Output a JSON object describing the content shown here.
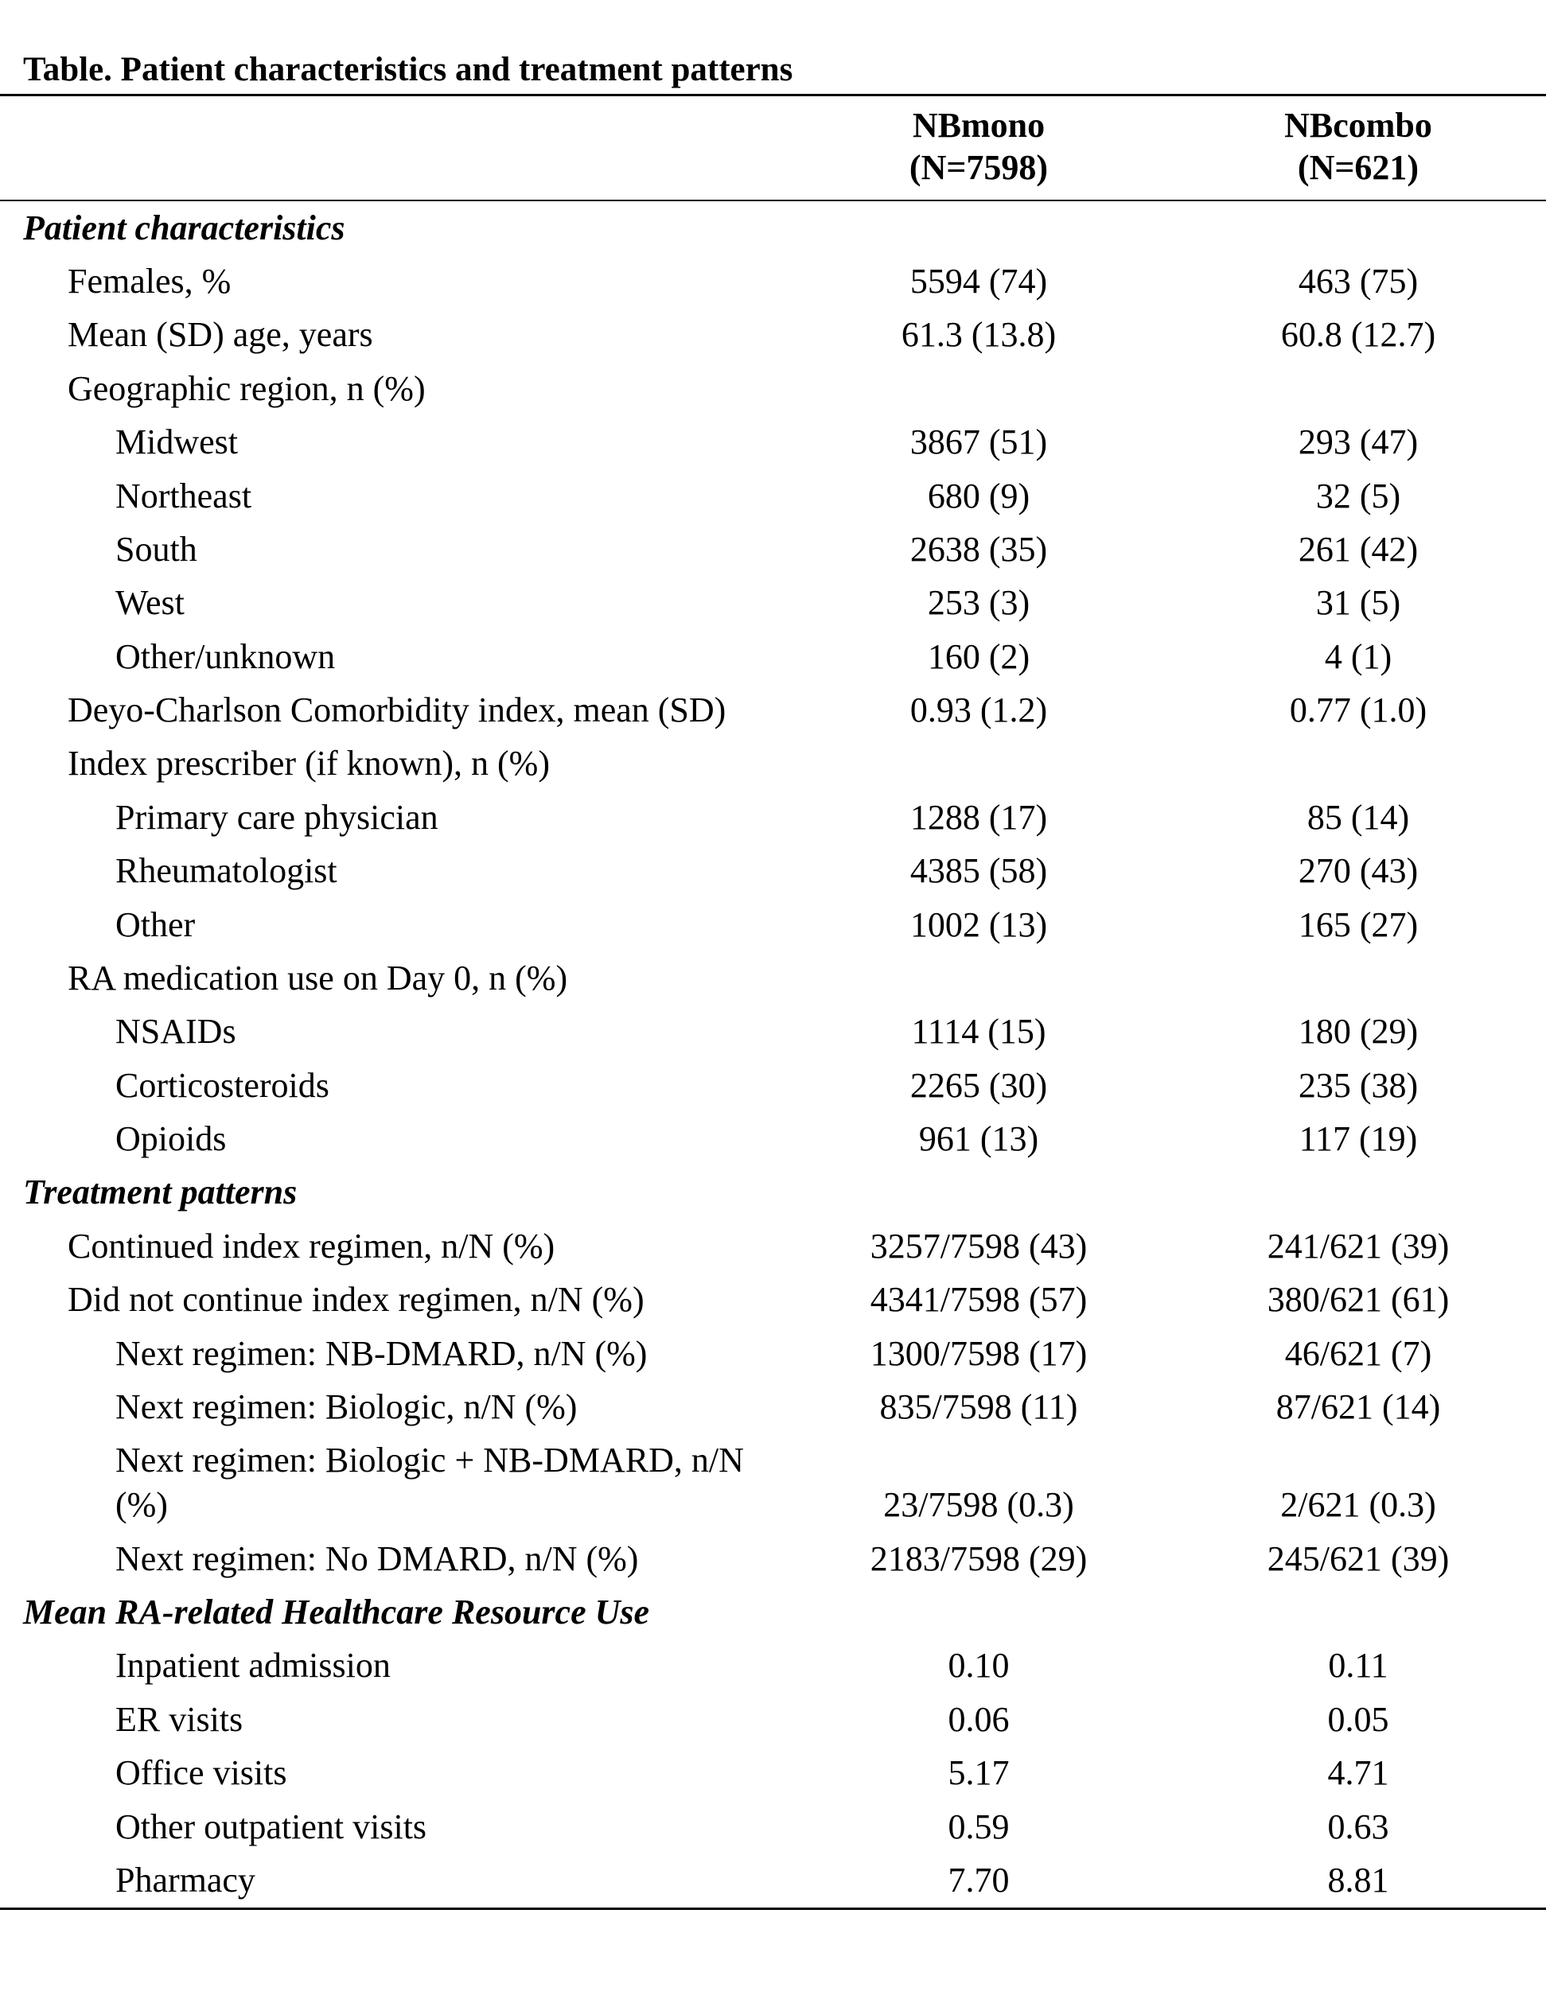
{
  "title": "Table. Patient characteristics and treatment patterns",
  "columns": [
    {
      "name": "NBmono",
      "n": "(N=7598)"
    },
    {
      "name": "NBcombo",
      "n": "(N=621)"
    }
  ],
  "sections": [
    {
      "heading": "Patient characteristics",
      "rows": [
        {
          "label": "Females, %",
          "values": [
            "5594 (74)",
            "463 (75)"
          ]
        },
        {
          "label": "Mean (SD) age, years",
          "values": [
            "61.3 (13.8)",
            "60.8 (12.7)"
          ]
        },
        {
          "label": "Geographic region, n (%)",
          "children": [
            {
              "label": "Midwest",
              "values": [
                "3867 (51)",
                "293 (47)"
              ]
            },
            {
              "label": "Northeast",
              "values": [
                "680 (9)",
                "32 (5)"
              ]
            },
            {
              "label": "South",
              "values": [
                "2638 (35)",
                "261 (42)"
              ]
            },
            {
              "label": "West",
              "values": [
                "253 (3)",
                "31 (5)"
              ]
            },
            {
              "label": "Other/unknown",
              "values": [
                "160 (2)",
                "4 (1)"
              ]
            }
          ]
        },
        {
          "label": "Deyo-Charlson Comorbidity index, mean (SD)",
          "values": [
            "0.93 (1.2)",
            "0.77 (1.0)"
          ]
        },
        {
          "label": "Index prescriber (if known), n (%)",
          "children": [
            {
              "label": "Primary care physician",
              "values": [
                "1288 (17)",
                "85 (14)"
              ]
            },
            {
              "label": "Rheumatologist",
              "values": [
                "4385 (58)",
                "270 (43)"
              ]
            },
            {
              "label": "Other",
              "values": [
                "1002 (13)",
                "165 (27)"
              ]
            }
          ]
        },
        {
          "label": "RA medication use on Day 0, n (%)",
          "children": [
            {
              "label": "NSAIDs",
              "values": [
                "1114 (15)",
                "180 (29)"
              ]
            },
            {
              "label": "Corticosteroids",
              "values": [
                "2265 (30)",
                "235 (38)"
              ]
            },
            {
              "label": "Opioids",
              "values": [
                "961 (13)",
                "117 (19)"
              ]
            }
          ]
        }
      ]
    },
    {
      "heading": "Treatment patterns",
      "rows": [
        {
          "label": "Continued index regimen, n/N (%)",
          "values": [
            "3257/7598 (43)",
            "241/621 (39)"
          ]
        },
        {
          "label": "Did not continue index regimen, n/N (%)",
          "values": [
            "4341/7598 (57)",
            "380/621 (61)"
          ],
          "children": [
            {
              "label": "Next regimen: NB-DMARD, n/N (%)",
              "values": [
                "1300/7598 (17)",
                "46/621 (7)"
              ]
            },
            {
              "label": "Next regimen: Biologic, n/N (%)",
              "values": [
                "835/7598 (11)",
                "87/621 (14)"
              ]
            },
            {
              "label": "Next regimen: Biologic + NB-DMARD, n/N (%)",
              "values": [
                "23/7598 (0.3)",
                "2/621 (0.3)"
              ]
            },
            {
              "label": "Next regimen: No DMARD, n/N (%)",
              "values": [
                "2183/7598 (29)",
                "245/621 (39)"
              ]
            }
          ]
        }
      ]
    },
    {
      "heading": "Mean RA-related Healthcare Resource Use",
      "rows": [
        {
          "label": "Inpatient admission",
          "values": [
            "0.10",
            "0.11"
          ]
        },
        {
          "label": "ER visits",
          "values": [
            "0.06",
            "0.05"
          ]
        },
        {
          "label": "Office visits",
          "values": [
            "5.17",
            "4.71"
          ]
        },
        {
          "label": "Other outpatient visits",
          "values": [
            "0.59",
            "0.63"
          ]
        },
        {
          "label": "Pharmacy",
          "values": [
            "7.70",
            "8.81"
          ]
        }
      ]
    }
  ]
}
